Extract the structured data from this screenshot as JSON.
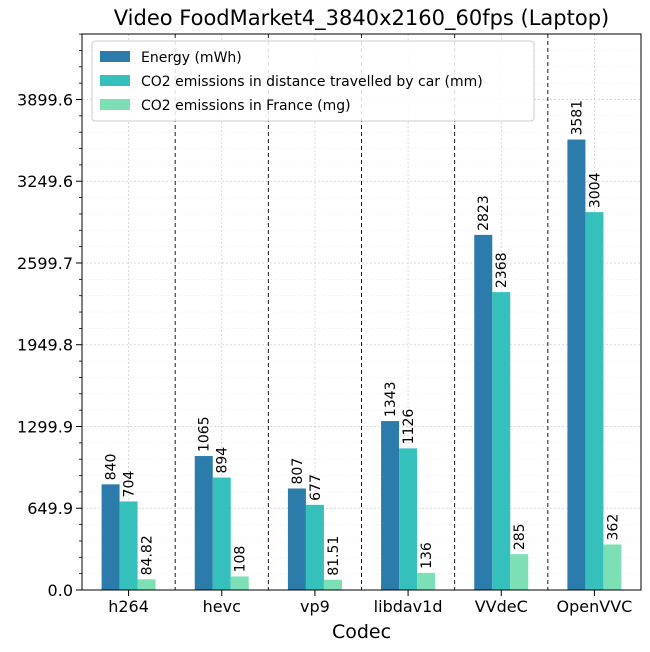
{
  "chart_data": {
    "type": "bar",
    "title": "Video FoodMarket4_3840x2160_60fps (Laptop)",
    "xlabel": "Codec",
    "ylabel": "",
    "categories": [
      "h264",
      "hevc",
      "vp9",
      "libdav1d",
      "VVdeC",
      "OpenVVC"
    ],
    "series": [
      {
        "name": "Energy (mWh)",
        "color": "#2b7bab",
        "values": [
          840,
          1065,
          807,
          1343,
          2823,
          3581
        ],
        "labels": [
          "840",
          "1065",
          "807",
          "1343",
          "2823",
          "3581"
        ]
      },
      {
        "name": "CO2 emissions in distance travelled by car (mm)",
        "color": "#35c0bb",
        "values": [
          704,
          894,
          677,
          1126,
          2368,
          3004
        ],
        "labels": [
          "704",
          "894",
          "677",
          "1126",
          "2368",
          "3004"
        ]
      },
      {
        "name": "CO2 emissions in France (mg)",
        "color": "#7ddfb6",
        "values": [
          84.82,
          108,
          81.51,
          136,
          285,
          362
        ],
        "labels": [
          "84.82",
          "108",
          "81.51",
          "136",
          "285",
          "362"
        ]
      }
    ],
    "yticks": [
      0.0,
      649.9,
      1299.9,
      1949.8,
      2599.7,
      3249.6,
      3899.6
    ],
    "ytick_labels": [
      "0.0",
      "649.9",
      "1299.9",
      "1949.8",
      "2599.7",
      "3249.6",
      "3899.6"
    ],
    "ylim": [
      0,
      4420
    ],
    "grid": true,
    "legend_position": "top-left"
  }
}
